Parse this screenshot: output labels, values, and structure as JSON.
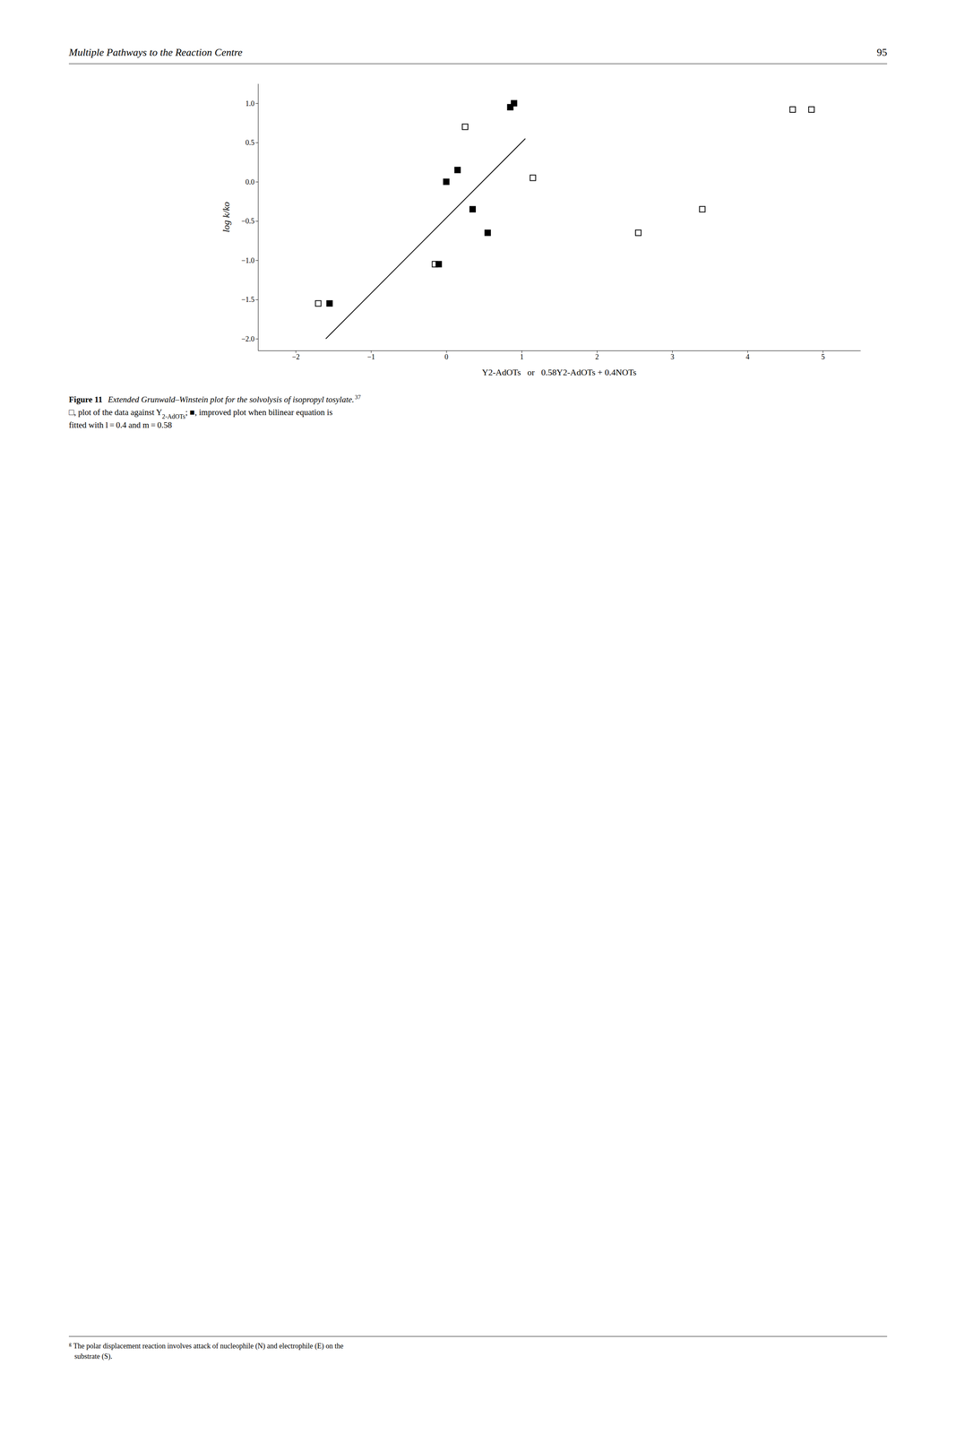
{
  "chart_data": {
    "type": "scatter",
    "title": "Multiple Pathways to the Reaction Centre",
    "x_label": "Y2-AdOTs   or   0.58Y2-AdOTs + 0.4NOTs",
    "y_label": "log k/ko",
    "series": [
      {
        "type": "scatter",
        "marker": "open-square",
        "color": "#000000",
        "x": [
          -1.7,
          -0.15,
          0.25,
          2.55,
          1.15,
          3.4,
          4.6,
          4.85
        ],
        "values": [
          -1.55,
          -1.05,
          0.7,
          -0.65,
          0.05,
          -0.35,
          0.92,
          0.92
        ]
      },
      {
        "type": "scatter",
        "marker": "square",
        "color": "#000000",
        "x": [
          -1.55,
          -0.1,
          0.0,
          0.15,
          0.35,
          0.55,
          0.85,
          0.9
        ],
        "values": [
          -1.55,
          -1.05,
          0.0,
          0.15,
          -0.35,
          -0.65,
          0.95,
          1.0
        ]
      },
      {
        "type": "line",
        "line_style": "solid",
        "color": "#000000",
        "x": [
          -1.6,
          1.05
        ],
        "values": [
          -2.0,
          0.55
        ]
      }
    ],
    "xlim": [
      -2.5,
      5.5
    ],
    "ylim": [
      -2.15,
      1.25
    ],
    "xticks": [
      -2,
      -1,
      0,
      1,
      2,
      3,
      4,
      5
    ],
    "yticks": [
      {
        "value": -2.0,
        "label": "−2.0"
      },
      -1.5,
      {
        "value": -1.0,
        "label": "−1.0"
      },
      -0.5,
      {
        "value": 0.0,
        "label": "0.0"
      },
      0.5,
      {
        "value": 1.0,
        "label": "1.0"
      }
    ],
    "grid": false,
    "annotations": [
      "95",
      "Figure 11",
      "Extended Grunwald–Winstein plot for the solvolysis of isopropyl tosylate.",
      "37",
      "□, plot of the data against Y",
      "2-AdOTs",
      "; ■, improved plot when bilinear equation is",
      "fitted with l = 0.4 and m = 0.58",
      "g",
      "The polar displacement reaction involves attack of nucleophile (N) and electrophile (E) on the",
      "substrate (S)."
    ]
  }
}
